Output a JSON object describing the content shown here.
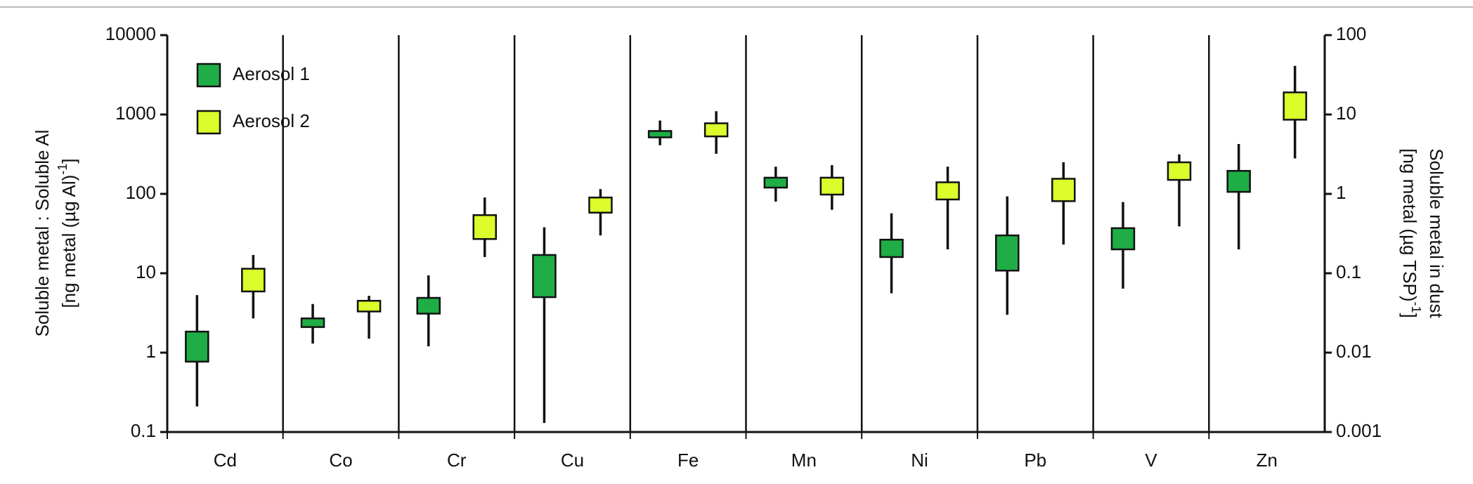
{
  "chart_data": {
    "type": "box",
    "categories": [
      "Cd",
      "Co",
      "Cr",
      "Cu",
      "Fe",
      "Mn",
      "Ni",
      "Pb",
      "V",
      "Zn"
    ],
    "ylabel": {
      "line1": "Soluble metal : Soluble Al",
      "line2": "[ng metal  (µg Al)",
      "line2_sup": "-1",
      "line2_end": "]"
    },
    "y2label": {
      "line1": "Soluble metal in dust",
      "line2": "[ng metal (µg TSP)",
      "line2_sup": "-1",
      "line2_end": "]"
    },
    "ylim": [
      0.1,
      10000
    ],
    "yticks": [
      0.1,
      1,
      10,
      100,
      1000,
      10000
    ],
    "y2lim": [
      0.001,
      100
    ],
    "y2ticks": [
      0.001,
      0.01,
      0.1,
      1,
      10,
      100
    ],
    "log_scale": true,
    "legend": "top-left",
    "series": [
      {
        "name": "Aerosol 1",
        "color": "#1fad45",
        "min": [
          0.21,
          1.3,
          1.2,
          0.13,
          410,
          80,
          5.6,
          3.0,
          6.4,
          20
        ],
        "q1": [
          0.77,
          2.1,
          3.1,
          5,
          515,
          120,
          16,
          10.8,
          20,
          106
        ],
        "q3": [
          1.84,
          2.7,
          4.9,
          17,
          620,
          160,
          26.5,
          30,
          37,
          195
        ],
        "max": [
          5.3,
          4.1,
          9.4,
          38,
          840,
          220,
          57,
          93,
          79,
          425
        ]
      },
      {
        "name": "Aerosol 2",
        "color": "#dcfc2c",
        "min": [
          2.7,
          1.5,
          16,
          30,
          320,
          63,
          20,
          23,
          39,
          280
        ],
        "q1": [
          5.9,
          3.3,
          27,
          58,
          530,
          98,
          85,
          81,
          150,
          860
        ],
        "q3": [
          11.4,
          4.5,
          54,
          90,
          775,
          160,
          140,
          155,
          250,
          1900
        ],
        "max": [
          17,
          5.2,
          90,
          115,
          1100,
          230,
          220,
          250,
          315,
          4100
        ]
      }
    ]
  }
}
